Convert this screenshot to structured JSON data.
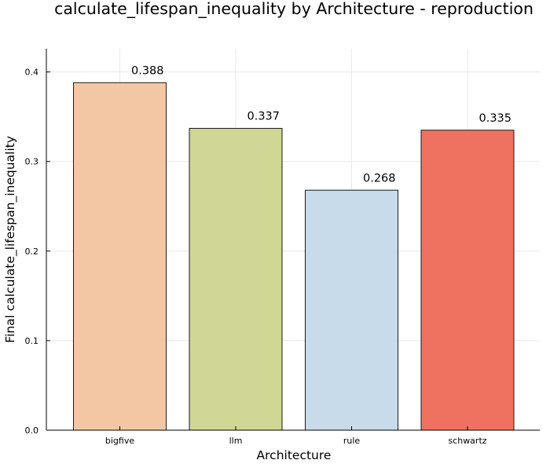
{
  "chart_data": {
    "type": "bar",
    "title": "calculate_lifespan_inequality by Architecture - reproduction",
    "xlabel": "Architecture",
    "ylabel": "Final calculate_lifespan_inequality",
    "categories": [
      "bigfive",
      "llm",
      "rule",
      "schwartz"
    ],
    "values": [
      0.388,
      0.337,
      0.268,
      0.335
    ],
    "data_labels": [
      "0.388",
      "0.337",
      "0.268",
      "0.335"
    ],
    "colors": [
      "#f4c7a4",
      "#d0d693",
      "#c7dbea",
      "#ef7260"
    ],
    "ylim": [
      0,
      0.426
    ],
    "yticks": [
      0.0,
      0.1,
      0.2,
      0.3,
      0.4
    ],
    "ytick_labels": [
      "0.0",
      "0.1",
      "0.2",
      "0.3",
      "0.4"
    ],
    "grid": true,
    "legend": "none"
  }
}
